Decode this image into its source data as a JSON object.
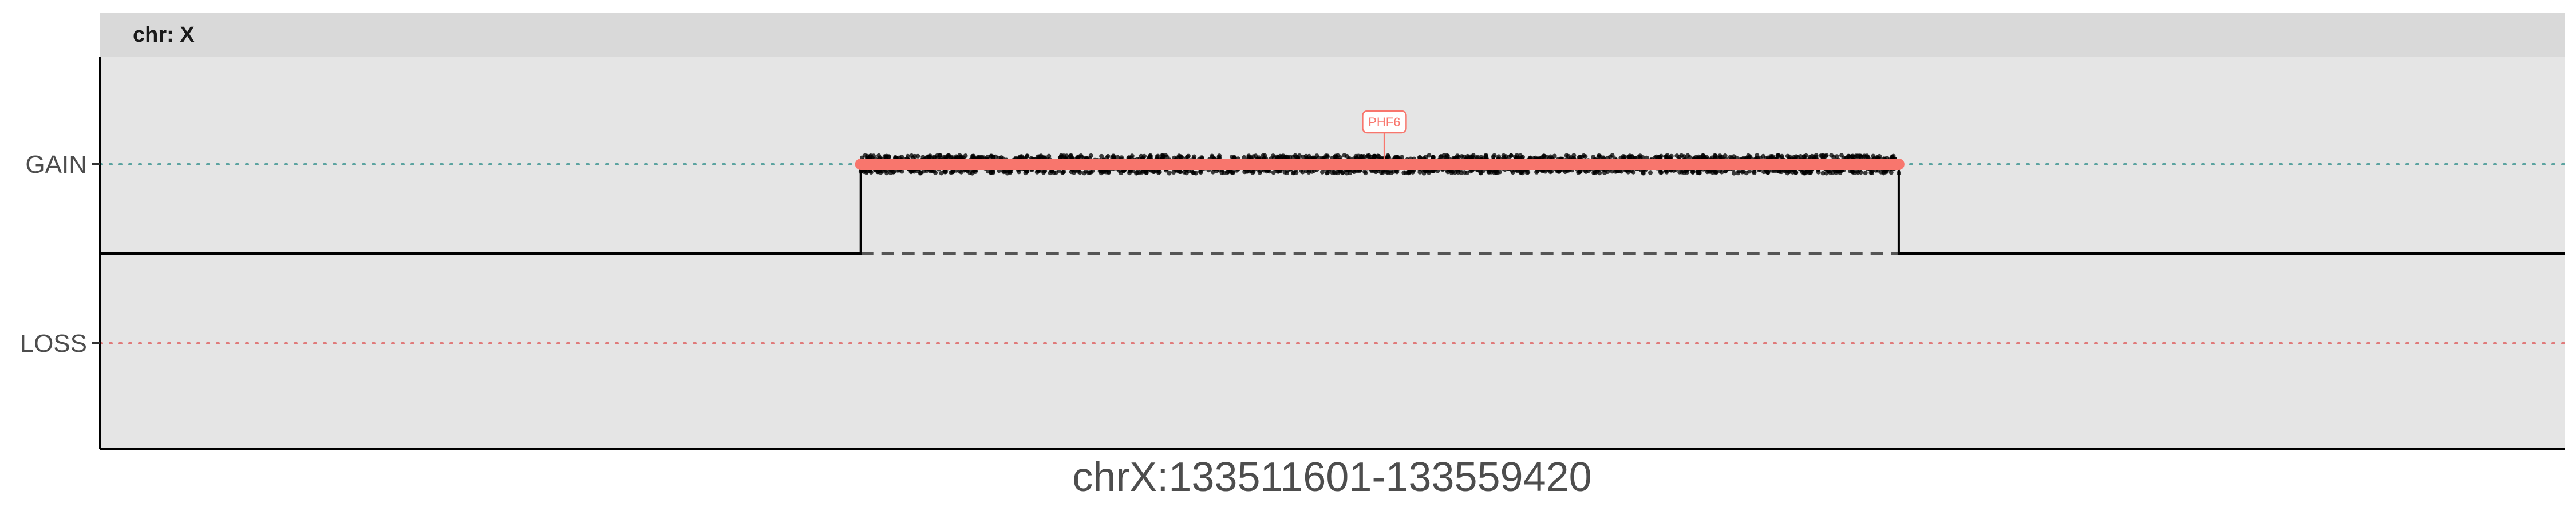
{
  "chart_data": {
    "type": "scatter",
    "facet": "chr: X",
    "xlabel": "chrX:133511601-133559420",
    "ylabel": "",
    "x_range": [
      133511601,
      133559420
    ],
    "yticks": [
      "GAIN",
      "LOSS"
    ],
    "y_levels": {
      "GAIN": 1,
      "LOSS": -1,
      "NEUTRAL": 0
    },
    "ylim": [
      -1.6,
      1.6
    ],
    "grid": false,
    "colors": {
      "panel": "#e5e5e5",
      "strip": "#d9d9d9",
      "gain_guide": "#5ba3a0",
      "loss_guide": "#e07a7a",
      "segment": "#f8766d",
      "points": "#000000",
      "step_line": "#000000"
    },
    "copy_number_step": [
      {
        "x": 133511601,
        "y": 0
      },
      {
        "x": 133526360,
        "y": 0
      },
      {
        "x": 133526360,
        "y": 1
      },
      {
        "x": 133546500,
        "y": 1
      },
      {
        "x": 133546500,
        "y": 0
      },
      {
        "x": 133559420,
        "y": 0
      }
    ],
    "baseline_dashed": {
      "x_start": 133526360,
      "x_end": 133546500,
      "y": 0
    },
    "gain_segment": {
      "x_start": 133526360,
      "x_end": 133546500,
      "y": 1
    },
    "points": {
      "x_start": 133526360,
      "x_end": 133546500,
      "y": 1,
      "y_spread": 0.1
    },
    "annotations": [
      {
        "label": "PHF6",
        "x": 133536520,
        "y": 1
      }
    ]
  }
}
